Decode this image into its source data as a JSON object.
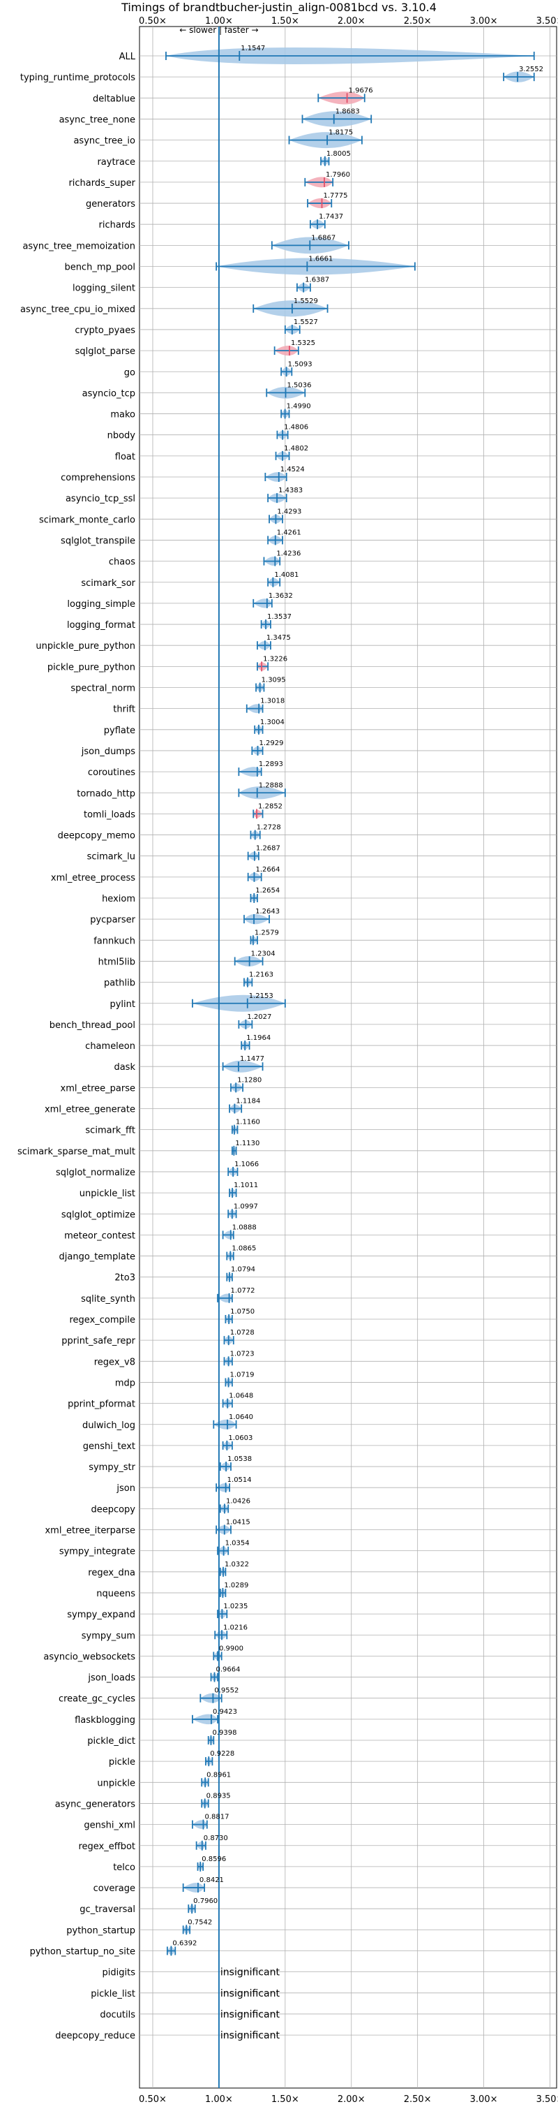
{
  "chart_data": {
    "type": "violin",
    "title": "Timings of brandtbucher-justin_align-0081bcd vs. 3.10.4",
    "xlim": [
      0.4,
      3.55
    ],
    "xticks": [
      0.5,
      1.0,
      1.5,
      2.0,
      2.5,
      3.0,
      3.5
    ],
    "xtick_labels": [
      "0.50×",
      "1.00×",
      "1.50×",
      "2.00×",
      "2.50×",
      "3.00×",
      "3.50×"
    ],
    "reference_line": 1.0,
    "direction_label": "← slower | faster →",
    "grid": true,
    "insignificant_label": "insignificant",
    "benchmarks": [
      {
        "name": "ALL",
        "mean": 1.1547,
        "min": 0.6,
        "max": 3.38
      },
      {
        "name": "typing_runtime_protocols",
        "mean": 3.2552,
        "min": 3.15,
        "max": 3.38
      },
      {
        "name": "deltablue",
        "mean": 1.9676,
        "min": 1.75,
        "max": 2.1,
        "highlight": true
      },
      {
        "name": "async_tree_none",
        "mean": 1.8683,
        "min": 1.63,
        "max": 2.15
      },
      {
        "name": "async_tree_io",
        "mean": 1.8175,
        "min": 1.53,
        "max": 2.08
      },
      {
        "name": "raytrace",
        "mean": 1.8005,
        "min": 1.77,
        "max": 1.83
      },
      {
        "name": "richards_super",
        "mean": 1.796,
        "min": 1.65,
        "max": 1.86,
        "highlight": true
      },
      {
        "name": "generators",
        "mean": 1.7775,
        "min": 1.67,
        "max": 1.85,
        "highlight": true
      },
      {
        "name": "richards",
        "mean": 1.7437,
        "min": 1.69,
        "max": 1.8
      },
      {
        "name": "async_tree_memoization",
        "mean": 1.6867,
        "min": 1.4,
        "max": 1.98
      },
      {
        "name": "bench_mp_pool",
        "mean": 1.6661,
        "min": 0.98,
        "max": 2.48
      },
      {
        "name": "logging_silent",
        "mean": 1.6387,
        "min": 1.59,
        "max": 1.69
      },
      {
        "name": "async_tree_cpu_io_mixed",
        "mean": 1.5529,
        "min": 1.26,
        "max": 1.82
      },
      {
        "name": "crypto_pyaes",
        "mean": 1.5527,
        "min": 1.5,
        "max": 1.61
      },
      {
        "name": "sqlglot_parse",
        "mean": 1.5325,
        "min": 1.42,
        "max": 1.6,
        "highlight": true
      },
      {
        "name": "go",
        "mean": 1.5093,
        "min": 1.47,
        "max": 1.55
      },
      {
        "name": "asyncio_tcp",
        "mean": 1.5036,
        "min": 1.36,
        "max": 1.65
      },
      {
        "name": "mako",
        "mean": 1.499,
        "min": 1.47,
        "max": 1.53
      },
      {
        "name": "nbody",
        "mean": 1.4806,
        "min": 1.44,
        "max": 1.52
      },
      {
        "name": "float",
        "mean": 1.4802,
        "min": 1.43,
        "max": 1.53
      },
      {
        "name": "comprehensions",
        "mean": 1.4524,
        "min": 1.35,
        "max": 1.51
      },
      {
        "name": "asyncio_tcp_ssl",
        "mean": 1.4383,
        "min": 1.37,
        "max": 1.51
      },
      {
        "name": "scimark_monte_carlo",
        "mean": 1.4293,
        "min": 1.38,
        "max": 1.48
      },
      {
        "name": "sqlglot_transpile",
        "mean": 1.4261,
        "min": 1.37,
        "max": 1.48
      },
      {
        "name": "chaos",
        "mean": 1.4236,
        "min": 1.34,
        "max": 1.46
      },
      {
        "name": "scimark_sor",
        "mean": 1.4081,
        "min": 1.37,
        "max": 1.46
      },
      {
        "name": "logging_simple",
        "mean": 1.3632,
        "min": 1.26,
        "max": 1.4
      },
      {
        "name": "logging_format",
        "mean": 1.3537,
        "min": 1.32,
        "max": 1.39
      },
      {
        "name": "unpickle_pure_python",
        "mean": 1.3475,
        "min": 1.29,
        "max": 1.39
      },
      {
        "name": "pickle_pure_python",
        "mean": 1.3226,
        "min": 1.29,
        "max": 1.37,
        "highlight": true
      },
      {
        "name": "spectral_norm",
        "mean": 1.3095,
        "min": 1.28,
        "max": 1.34
      },
      {
        "name": "thrift",
        "mean": 1.3018,
        "min": 1.21,
        "max": 1.33
      },
      {
        "name": "pyflate",
        "mean": 1.3004,
        "min": 1.27,
        "max": 1.33
      },
      {
        "name": "json_dumps",
        "mean": 1.2929,
        "min": 1.25,
        "max": 1.33
      },
      {
        "name": "coroutines",
        "mean": 1.2893,
        "min": 1.15,
        "max": 1.32
      },
      {
        "name": "tornado_http",
        "mean": 1.2888,
        "min": 1.15,
        "max": 1.5
      },
      {
        "name": "tomli_loads",
        "mean": 1.2852,
        "min": 1.26,
        "max": 1.33,
        "highlight": true
      },
      {
        "name": "deepcopy_memo",
        "mean": 1.2728,
        "min": 1.24,
        "max": 1.31
      },
      {
        "name": "scimark_lu",
        "mean": 1.2687,
        "min": 1.22,
        "max": 1.3
      },
      {
        "name": "xml_etree_process",
        "mean": 1.2664,
        "min": 1.22,
        "max": 1.32
      },
      {
        "name": "hexiom",
        "mean": 1.2654,
        "min": 1.24,
        "max": 1.29
      },
      {
        "name": "pycparser",
        "mean": 1.2643,
        "min": 1.19,
        "max": 1.38
      },
      {
        "name": "fannkuch",
        "mean": 1.2579,
        "min": 1.24,
        "max": 1.29
      },
      {
        "name": "html5lib",
        "mean": 1.2304,
        "min": 1.12,
        "max": 1.33
      },
      {
        "name": "pathlib",
        "mean": 1.2163,
        "min": 1.19,
        "max": 1.25
      },
      {
        "name": "pylint",
        "mean": 1.2153,
        "min": 0.8,
        "max": 1.5
      },
      {
        "name": "bench_thread_pool",
        "mean": 1.2027,
        "min": 1.15,
        "max": 1.25
      },
      {
        "name": "chameleon",
        "mean": 1.1964,
        "min": 1.17,
        "max": 1.23
      },
      {
        "name": "dask",
        "mean": 1.1477,
        "min": 1.03,
        "max": 1.33
      },
      {
        "name": "xml_etree_parse",
        "mean": 1.128,
        "min": 1.09,
        "max": 1.18
      },
      {
        "name": "xml_etree_generate",
        "mean": 1.1184,
        "min": 1.08,
        "max": 1.17
      },
      {
        "name": "scimark_fft",
        "mean": 1.116,
        "min": 1.1,
        "max": 1.14
      },
      {
        "name": "scimark_sparse_mat_mult",
        "mean": 1.113,
        "min": 1.1,
        "max": 1.13
      },
      {
        "name": "sqlglot_normalize",
        "mean": 1.1066,
        "min": 1.07,
        "max": 1.14
      },
      {
        "name": "unpickle_list",
        "mean": 1.1011,
        "min": 1.08,
        "max": 1.13
      },
      {
        "name": "sqlglot_optimize",
        "mean": 1.0997,
        "min": 1.07,
        "max": 1.13
      },
      {
        "name": "meteor_contest",
        "mean": 1.0888,
        "min": 1.03,
        "max": 1.11
      },
      {
        "name": "django_template",
        "mean": 1.0865,
        "min": 1.06,
        "max": 1.11
      },
      {
        "name": "2to3",
        "mean": 1.0794,
        "min": 1.06,
        "max": 1.1
      },
      {
        "name": "sqlite_synth",
        "mean": 1.0772,
        "min": 0.99,
        "max": 1.1
      },
      {
        "name": "regex_compile",
        "mean": 1.075,
        "min": 1.05,
        "max": 1.1
      },
      {
        "name": "pprint_safe_repr",
        "mean": 1.0728,
        "min": 1.04,
        "max": 1.11
      },
      {
        "name": "regex_v8",
        "mean": 1.0723,
        "min": 1.04,
        "max": 1.1
      },
      {
        "name": "mdp",
        "mean": 1.0719,
        "min": 1.05,
        "max": 1.1
      },
      {
        "name": "pprint_pformat",
        "mean": 1.0648,
        "min": 1.03,
        "max": 1.1
      },
      {
        "name": "dulwich_log",
        "mean": 1.064,
        "min": 0.96,
        "max": 1.13
      },
      {
        "name": "genshi_text",
        "mean": 1.0603,
        "min": 1.03,
        "max": 1.1
      },
      {
        "name": "sympy_str",
        "mean": 1.0538,
        "min": 1.01,
        "max": 1.09
      },
      {
        "name": "json",
        "mean": 1.0514,
        "min": 0.98,
        "max": 1.08
      },
      {
        "name": "deepcopy",
        "mean": 1.0426,
        "min": 1.01,
        "max": 1.07
      },
      {
        "name": "xml_etree_iterparse",
        "mean": 1.0415,
        "min": 0.98,
        "max": 1.09
      },
      {
        "name": "sympy_integrate",
        "mean": 1.0354,
        "min": 0.99,
        "max": 1.07
      },
      {
        "name": "regex_dna",
        "mean": 1.0322,
        "min": 1.01,
        "max": 1.05
      },
      {
        "name": "nqueens",
        "mean": 1.0289,
        "min": 1.01,
        "max": 1.05
      },
      {
        "name": "sympy_expand",
        "mean": 1.0235,
        "min": 0.99,
        "max": 1.06
      },
      {
        "name": "sympy_sum",
        "mean": 1.0216,
        "min": 0.97,
        "max": 1.06
      },
      {
        "name": "asyncio_websockets",
        "mean": 0.99,
        "min": 0.96,
        "max": 1.02
      },
      {
        "name": "json_loads",
        "mean": 0.9664,
        "min": 0.94,
        "max": 0.99
      },
      {
        "name": "create_gc_cycles",
        "mean": 0.9552,
        "min": 0.86,
        "max": 1.02
      },
      {
        "name": "flaskblogging",
        "mean": 0.9423,
        "min": 0.8,
        "max": 0.99
      },
      {
        "name": "pickle_dict",
        "mean": 0.9398,
        "min": 0.92,
        "max": 0.96
      },
      {
        "name": "pickle",
        "mean": 0.9228,
        "min": 0.9,
        "max": 0.95
      },
      {
        "name": "unpickle",
        "mean": 0.8961,
        "min": 0.87,
        "max": 0.92
      },
      {
        "name": "async_generators",
        "mean": 0.8935,
        "min": 0.87,
        "max": 0.92
      },
      {
        "name": "genshi_xml",
        "mean": 0.8817,
        "min": 0.8,
        "max": 0.91
      },
      {
        "name": "regex_effbot",
        "mean": 0.873,
        "min": 0.83,
        "max": 0.9
      },
      {
        "name": "telco",
        "mean": 0.8596,
        "min": 0.84,
        "max": 0.88
      },
      {
        "name": "coverage",
        "mean": 0.8421,
        "min": 0.73,
        "max": 0.89
      },
      {
        "name": "gc_traversal",
        "mean": 0.796,
        "min": 0.77,
        "max": 0.82
      },
      {
        "name": "python_startup",
        "mean": 0.7542,
        "min": 0.73,
        "max": 0.78
      },
      {
        "name": "python_startup_no_site",
        "mean": 0.6392,
        "min": 0.61,
        "max": 0.67
      },
      {
        "name": "pidigits",
        "insignificant": true
      },
      {
        "name": "pickle_list",
        "insignificant": true
      },
      {
        "name": "docutils",
        "insignificant": true
      },
      {
        "name": "deepcopy_reduce",
        "insignificant": true
      }
    ],
    "colors": {
      "line": "#1f77b4",
      "violin_fill": "#a6c8e6",
      "highlight_fill": "#f2a6b2",
      "highlight_line": "#e0506a",
      "grid": "#b0b0b0"
    }
  }
}
